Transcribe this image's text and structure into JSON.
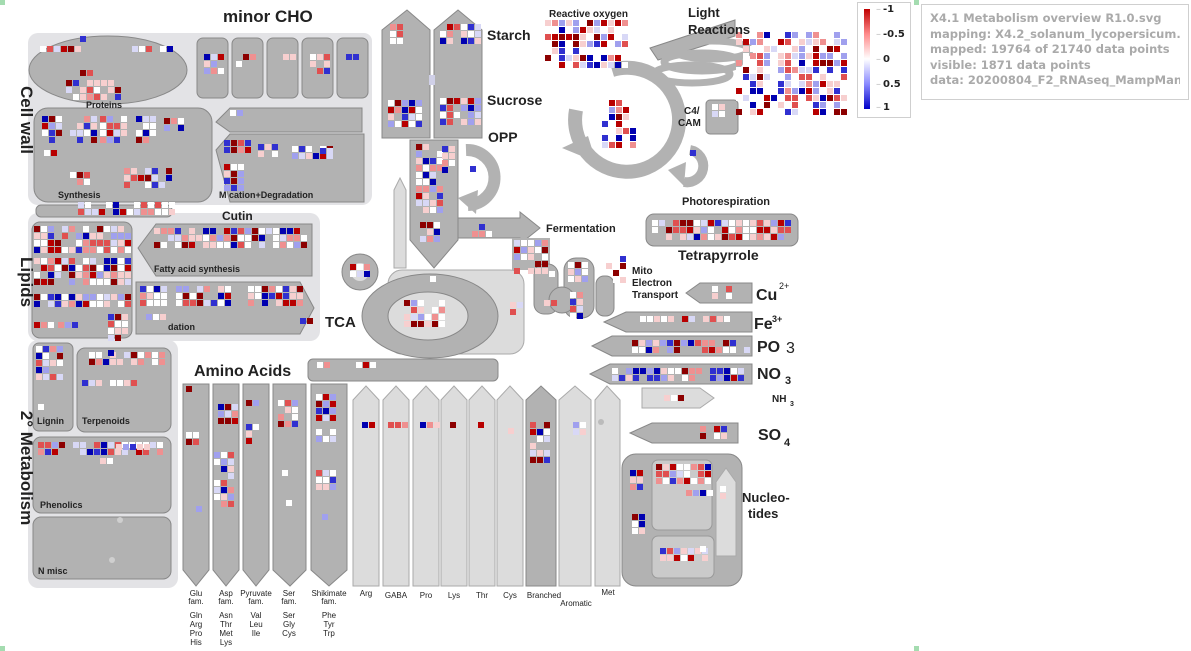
{
  "info_panel": {
    "lines": [
      "X4.1 Metabolism overview R1.0.svg",
      "mapping: X4.2_solanum_lycopersicum.xls",
      "mapped: 19764 of 21740 data points",
      "visible: 1871 data points",
      "data: 20200804_F2_RNAseq_MampMan.txt"
    ]
  },
  "legend": {
    "ticks": [
      "-1",
      "-0.5",
      "0",
      "0.5",
      "1"
    ],
    "colors": {
      "high": "#c00000",
      "mid": "#ffffff",
      "low": "#0000c8"
    }
  },
  "labels": {
    "minor_cho": "minor CHO",
    "cell_wall": "Cell wall",
    "lipids": "Lipids",
    "secondary_metabolism": "2° Metabolism",
    "proteins": "Proteins",
    "synthesis": "Synthesis",
    "modification_degradation": "M  cation+Degradation",
    "cutin": "Cutin",
    "fatty_acid_synthesis": "Fatty acid synthesis",
    "dation": "dation",
    "lignin": "Lignin",
    "terpenoids": "Terpenoids",
    "phenolics": "Phenolics",
    "n_misc": "N misc",
    "starch": "Starch",
    "sucrose": "Sucrose",
    "opp": "OPP",
    "reactive_oxygen": "Reactive oxygen",
    "light_reactions_1": "Light",
    "light_reactions_2": "Reactions",
    "c4_cam_1": "C4/",
    "c4_cam_2": "CAM",
    "photorespiration": "Photorespiration",
    "fermentation": "Fermentation",
    "tetrapyrrole": "Tetrapyrrole",
    "mito_1": "Mito",
    "mito_2": "Electron",
    "mito_3": "Transport",
    "tca": "TCA",
    "cu": "Cu",
    "cu_sup": "2+",
    "fe": "Fe",
    "fe_sup": "3+",
    "po": "PO",
    "po_sub": "3",
    "no": "NO",
    "no_sub": "3",
    "nh": "NH",
    "nh_sub": "3",
    "so": "SO",
    "so_sub": "4",
    "amino_acids": "Amino Acids",
    "nucleotides_1": "Nucleo-",
    "nucleotides_2": "tides"
  },
  "amino_acid_families": [
    {
      "name": "Glu fam.",
      "members": [
        "Gln",
        "Arg",
        "Pro",
        "His"
      ]
    },
    {
      "name": "Asp fam.",
      "members": [
        "Asn",
        "Thr",
        "Met",
        "Lys"
      ]
    },
    {
      "name": "Pyruvate fam.",
      "members": [
        "Val",
        "Leu",
        "Ile"
      ]
    },
    {
      "name": "Ser fam.",
      "members": [
        "Ser",
        "Gly",
        "Cys"
      ]
    },
    {
      "name": "Shikimate fam.",
      "members": [
        "Phe",
        "Tyr",
        "Trp"
      ]
    }
  ],
  "amino_acid_degradation": [
    "Arg",
    "GABA",
    "Pro",
    "Lys",
    "Thr",
    "Cys",
    "Branched",
    "Aromatic",
    "Met"
  ]
}
